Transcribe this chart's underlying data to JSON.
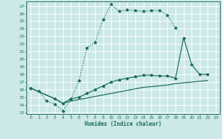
{
  "xlabel": "Humidex (Indice chaleur)",
  "bg_color": "#cce8e8",
  "line_color": "#1a6b5a",
  "grid_color": "#ffffff",
  "xlim": [
    -0.5,
    23.5
  ],
  "ylim": [
    12.8,
    27.6
  ],
  "xticks": [
    0,
    1,
    2,
    3,
    4,
    5,
    6,
    7,
    8,
    9,
    10,
    11,
    12,
    13,
    14,
    15,
    16,
    17,
    18,
    19,
    20,
    21,
    22,
    23
  ],
  "yticks": [
    13,
    14,
    15,
    16,
    17,
    18,
    19,
    20,
    21,
    22,
    23,
    24,
    25,
    26,
    27
  ],
  "curve1_x": [
    0,
    1,
    2,
    3,
    4,
    5,
    6,
    7,
    8,
    9,
    10,
    11,
    12,
    13,
    14,
    15,
    16,
    17,
    18
  ],
  "curve1_y": [
    16.2,
    15.8,
    14.5,
    14.1,
    13.2,
    14.7,
    17.2,
    21.5,
    22.2,
    25.2,
    27.2,
    26.3,
    26.5,
    26.4,
    26.3,
    26.4,
    26.4,
    25.8,
    24.1
  ],
  "curve2_x": [
    0,
    3,
    4,
    5,
    6,
    7,
    8,
    9,
    10,
    11,
    12,
    13,
    14,
    15,
    16,
    17,
    18,
    19,
    20,
    21,
    22
  ],
  "curve2_y": [
    16.2,
    14.8,
    14.2,
    14.8,
    15.0,
    15.5,
    16.0,
    16.5,
    17.0,
    17.3,
    17.5,
    17.7,
    17.9,
    17.9,
    17.8,
    17.8,
    17.5,
    22.8,
    19.3,
    18.0,
    18.0
  ],
  "curve3_x": [
    0,
    3,
    4,
    5,
    6,
    7,
    8,
    9,
    10,
    11,
    12,
    13,
    14,
    15,
    16,
    17,
    18,
    19,
    20,
    21,
    22
  ],
  "curve3_y": [
    16.2,
    14.8,
    14.2,
    14.5,
    14.7,
    14.9,
    15.1,
    15.3,
    15.5,
    15.7,
    15.9,
    16.1,
    16.3,
    16.4,
    16.5,
    16.6,
    16.8,
    16.9,
    17.0,
    17.1,
    17.2
  ]
}
